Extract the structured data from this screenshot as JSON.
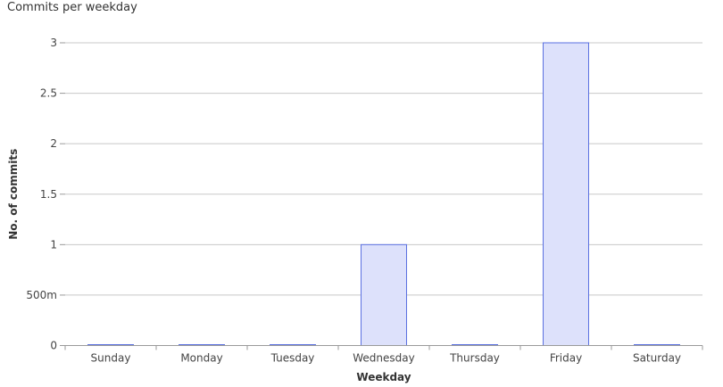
{
  "chart_data": {
    "type": "bar",
    "title": "Commits per weekday",
    "xlabel": "Weekday",
    "ylabel": "No. of commits",
    "categories": [
      "Sunday",
      "Monday",
      "Tuesday",
      "Wednesday",
      "Thursday",
      "Friday",
      "Saturday"
    ],
    "values": [
      0,
      0,
      0,
      1,
      0,
      3,
      0
    ],
    "ylim": [
      0,
      3
    ],
    "yticks": [
      0,
      0.5,
      1,
      1.5,
      2,
      2.5,
      3
    ],
    "ytick_labels": [
      "0",
      "500m",
      "1",
      "1.5",
      "2",
      "2.5",
      "3"
    ],
    "grid": true,
    "legend": "none",
    "colors": {
      "bar_fill": "#dde1fb",
      "bar_stroke": "#5a70e0",
      "grid": "#c8c8c8",
      "axis": "#9a9a9a"
    }
  }
}
